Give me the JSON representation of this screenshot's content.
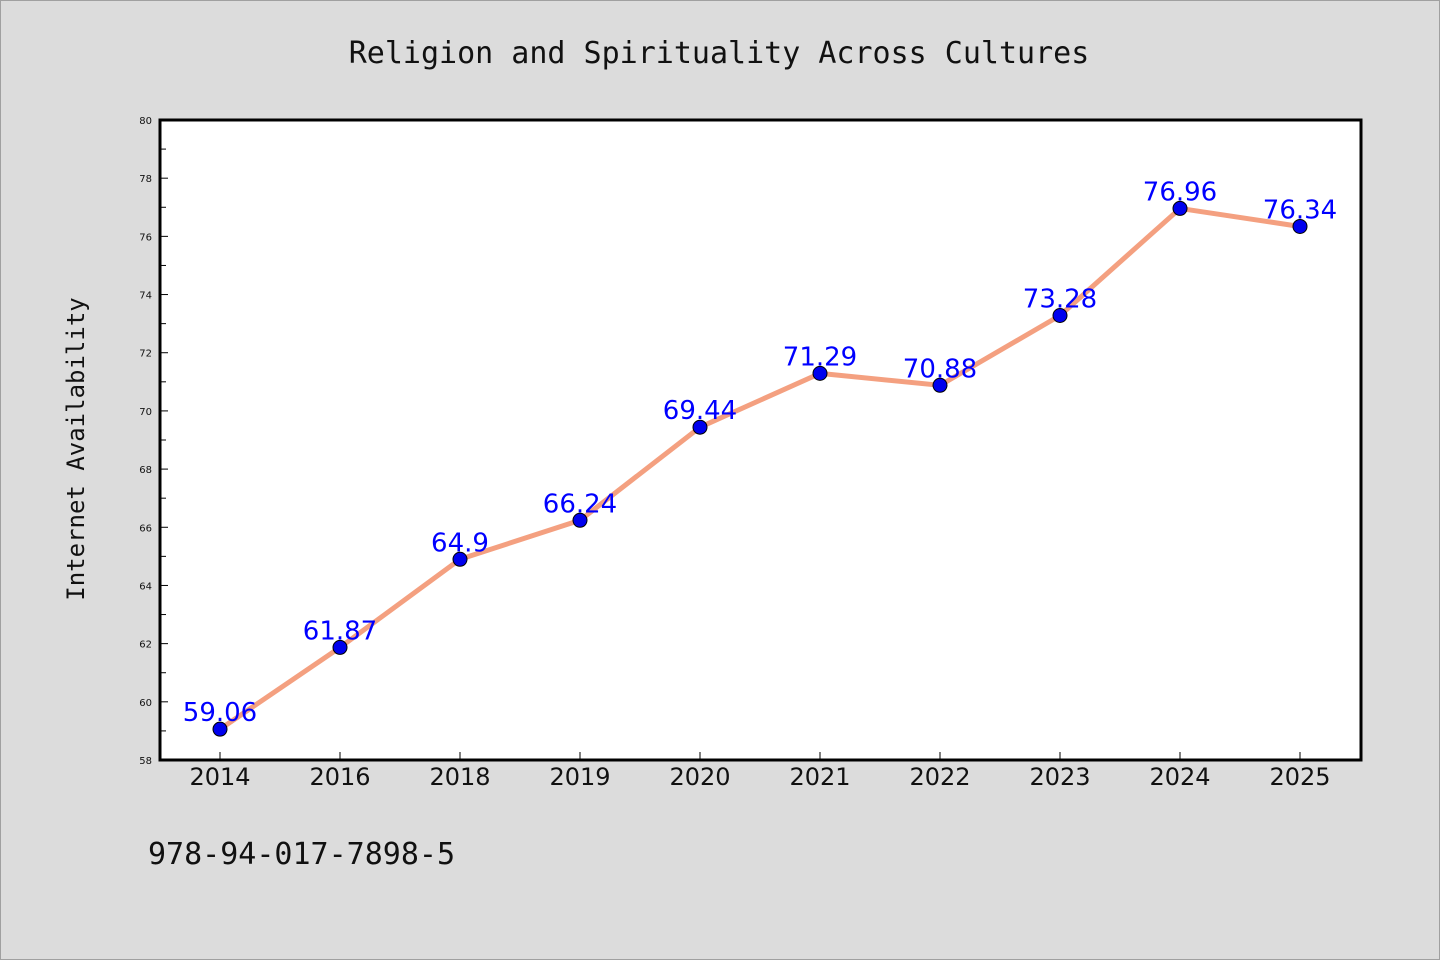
{
  "chart_data": {
    "type": "line",
    "title": "Religion and Spirituality Across Cultures",
    "xlabel": "",
    "ylabel": "Internet Availability",
    "categories": [
      "2014",
      "2016",
      "2018",
      "2019",
      "2020",
      "2021",
      "2022",
      "2023",
      "2024",
      "2025"
    ],
    "series": [
      {
        "values": [
          59.06,
          61.87,
          64.9,
          66.24,
          69.44,
          71.29,
          70.88,
          73.28,
          76.96,
          76.34
        ],
        "data_labels": [
          "59.06",
          "61.87",
          "64.9",
          "66.24",
          "69.44",
          "71.29",
          "70.88",
          "73.28",
          "76.96",
          "76.34"
        ],
        "line_color": "#f4a080",
        "marker_color": "#0000ee"
      }
    ],
    "ylim": [
      58,
      80
    ],
    "yticks": [
      "58",
      "60",
      "62",
      "64",
      "66",
      "68",
      "70",
      "72",
      "74",
      "76",
      "78",
      "80"
    ],
    "grid": false,
    "legend": "none",
    "colors": {
      "background": "#dcdcdc",
      "plot_background": "#ffffff",
      "label_color": "#0000ff"
    }
  },
  "footnote": "978-94-017-7898-5"
}
